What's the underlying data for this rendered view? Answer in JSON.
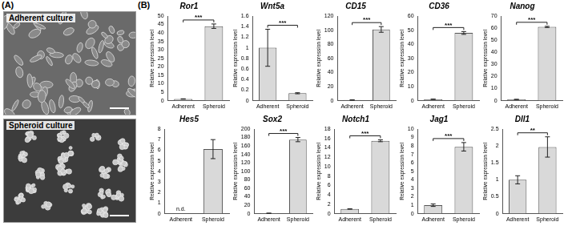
{
  "figure": {
    "panels": [
      {
        "label": "(A)",
        "images": [
          {
            "title": "Adherent culture"
          },
          {
            "title": "Spheroid culture"
          }
        ]
      },
      {
        "label": "(B)"
      }
    ]
  },
  "chart_data": [
    {
      "type": "bar",
      "title": "Ror1",
      "y_label": "Relative expression level",
      "categories": [
        "Adherent",
        "Spheroid"
      ],
      "values": [
        1,
        44
      ],
      "errors": [
        0.1,
        1.3
      ],
      "color": "#d9d9d9",
      "ylim": [
        0,
        50
      ],
      "yticks": [
        0,
        5,
        10,
        15,
        20,
        25,
        30,
        35,
        40,
        45,
        50
      ],
      "grid": false,
      "annotations": [
        {
          "text": "***",
          "between": [
            "Adherent",
            "Spheroid"
          ]
        }
      ]
    },
    {
      "type": "bar",
      "title": "Wnt5a",
      "y_label": "Relative expression level",
      "categories": [
        "Adherent",
        "Spheroid"
      ],
      "values": [
        1,
        0.14
      ],
      "errors": [
        0.35,
        0.01
      ],
      "color": "#d9d9d9",
      "ylim": [
        0,
        1.6
      ],
      "yticks": [
        0,
        0.2,
        0.4,
        0.6,
        0.8,
        1,
        1.2,
        1.4,
        1.6
      ],
      "grid": false,
      "annotations": [
        {
          "text": "***",
          "between": [
            "Adherent",
            "Spheroid"
          ]
        }
      ]
    },
    {
      "type": "bar",
      "title": "CD15",
      "y_label": "Relative expression level",
      "categories": [
        "Adherent",
        "Spheroid"
      ],
      "values": [
        1,
        101
      ],
      "errors": [
        0.1,
        4
      ],
      "color": "#d9d9d9",
      "ylim": [
        0,
        120
      ],
      "yticks": [
        0,
        20,
        40,
        60,
        80,
        100,
        120
      ],
      "grid": false,
      "annotations": [
        {
          "text": "***",
          "between": [
            "Adherent",
            "Spheroid"
          ]
        }
      ]
    },
    {
      "type": "bar",
      "title": "CD36",
      "y_label": "Relative expression level",
      "categories": [
        "Adherent",
        "Spheroid"
      ],
      "values": [
        1,
        48
      ],
      "errors": [
        0.1,
        1
      ],
      "color": "#d9d9d9",
      "ylim": [
        0,
        60
      ],
      "yticks": [
        0,
        10,
        20,
        30,
        40,
        50,
        60
      ],
      "grid": false,
      "annotations": [
        {
          "text": "***",
          "between": [
            "Adherent",
            "Spheroid"
          ]
        }
      ]
    },
    {
      "type": "bar",
      "title": "Nanog",
      "y_label": "Relative expression level",
      "categories": [
        "Adherent",
        "Spheroid"
      ],
      "values": [
        1,
        61
      ],
      "errors": [
        0.1,
        0.5
      ],
      "color": "#d9d9d9",
      "ylim": [
        0,
        70
      ],
      "yticks": [
        0,
        10,
        20,
        30,
        40,
        50,
        60,
        70
      ],
      "grid": false,
      "annotations": [
        {
          "text": "***",
          "between": [
            "Adherent",
            "Spheroid"
          ]
        }
      ]
    },
    {
      "type": "bar",
      "title": "Hes5",
      "y_label": "Relative expression level",
      "categories": [
        "Adherent",
        "Spheroid"
      ],
      "values": [
        null,
        6.1
      ],
      "errors": [
        null,
        0.9
      ],
      "color": "#d9d9d9",
      "ylim": [
        0,
        8
      ],
      "yticks": [
        0,
        1,
        2,
        3,
        4,
        5,
        6,
        7,
        8
      ],
      "grid": false,
      "annotations": [
        {
          "text": "n.d.",
          "category": "Adherent"
        }
      ]
    },
    {
      "type": "bar",
      "title": "Sox2",
      "y_label": "Relative expression level",
      "categories": [
        "Adherent",
        "Spheroid"
      ],
      "values": [
        1,
        175
      ],
      "errors": [
        0.1,
        5
      ],
      "color": "#d9d9d9",
      "ylim": [
        0,
        200
      ],
      "yticks": [
        0,
        20,
        40,
        60,
        80,
        100,
        120,
        140,
        160,
        180,
        200
      ],
      "grid": false,
      "annotations": [
        {
          "text": "***",
          "between": [
            "Adherent",
            "Spheroid"
          ]
        }
      ]
    },
    {
      "type": "bar",
      "title": "Notch1",
      "y_label": "Relative expression level",
      "categories": [
        "Adherent",
        "Spheroid"
      ],
      "values": [
        1,
        15.5
      ],
      "errors": [
        0.05,
        0.2
      ],
      "color": "#d9d9d9",
      "ylim": [
        0,
        18
      ],
      "yticks": [
        0,
        2,
        4,
        6,
        8,
        10,
        12,
        14,
        16,
        18
      ],
      "grid": false,
      "annotations": [
        {
          "text": "***",
          "between": [
            "Adherent",
            "Spheroid"
          ]
        }
      ]
    },
    {
      "type": "bar",
      "title": "Jag1",
      "y_label": "Relative expression level",
      "categories": [
        "Adherent",
        "Spheroid"
      ],
      "values": [
        1,
        7.9
      ],
      "errors": [
        0.15,
        0.5
      ],
      "color": "#d9d9d9",
      "ylim": [
        0,
        10
      ],
      "yticks": [
        0,
        1,
        2,
        3,
        4,
        5,
        6,
        7,
        8,
        9,
        10
      ],
      "grid": false,
      "annotations": [
        {
          "text": "***",
          "between": [
            "Adherent",
            "Spheroid"
          ]
        }
      ]
    },
    {
      "type": "bar",
      "title": "Dll1",
      "y_label": "Relative expression level",
      "categories": [
        "Adherent",
        "Spheroid"
      ],
      "values": [
        1,
        1.97
      ],
      "errors": [
        0.12,
        0.3
      ],
      "color": "#d9d9d9",
      "ylim": [
        0,
        2.5
      ],
      "yticks": [
        0,
        0.5,
        1,
        1.5,
        2,
        2.5
      ],
      "grid": false,
      "annotations": [
        {
          "text": "**",
          "between": [
            "Adherent",
            "Spheroid"
          ]
        }
      ]
    }
  ]
}
